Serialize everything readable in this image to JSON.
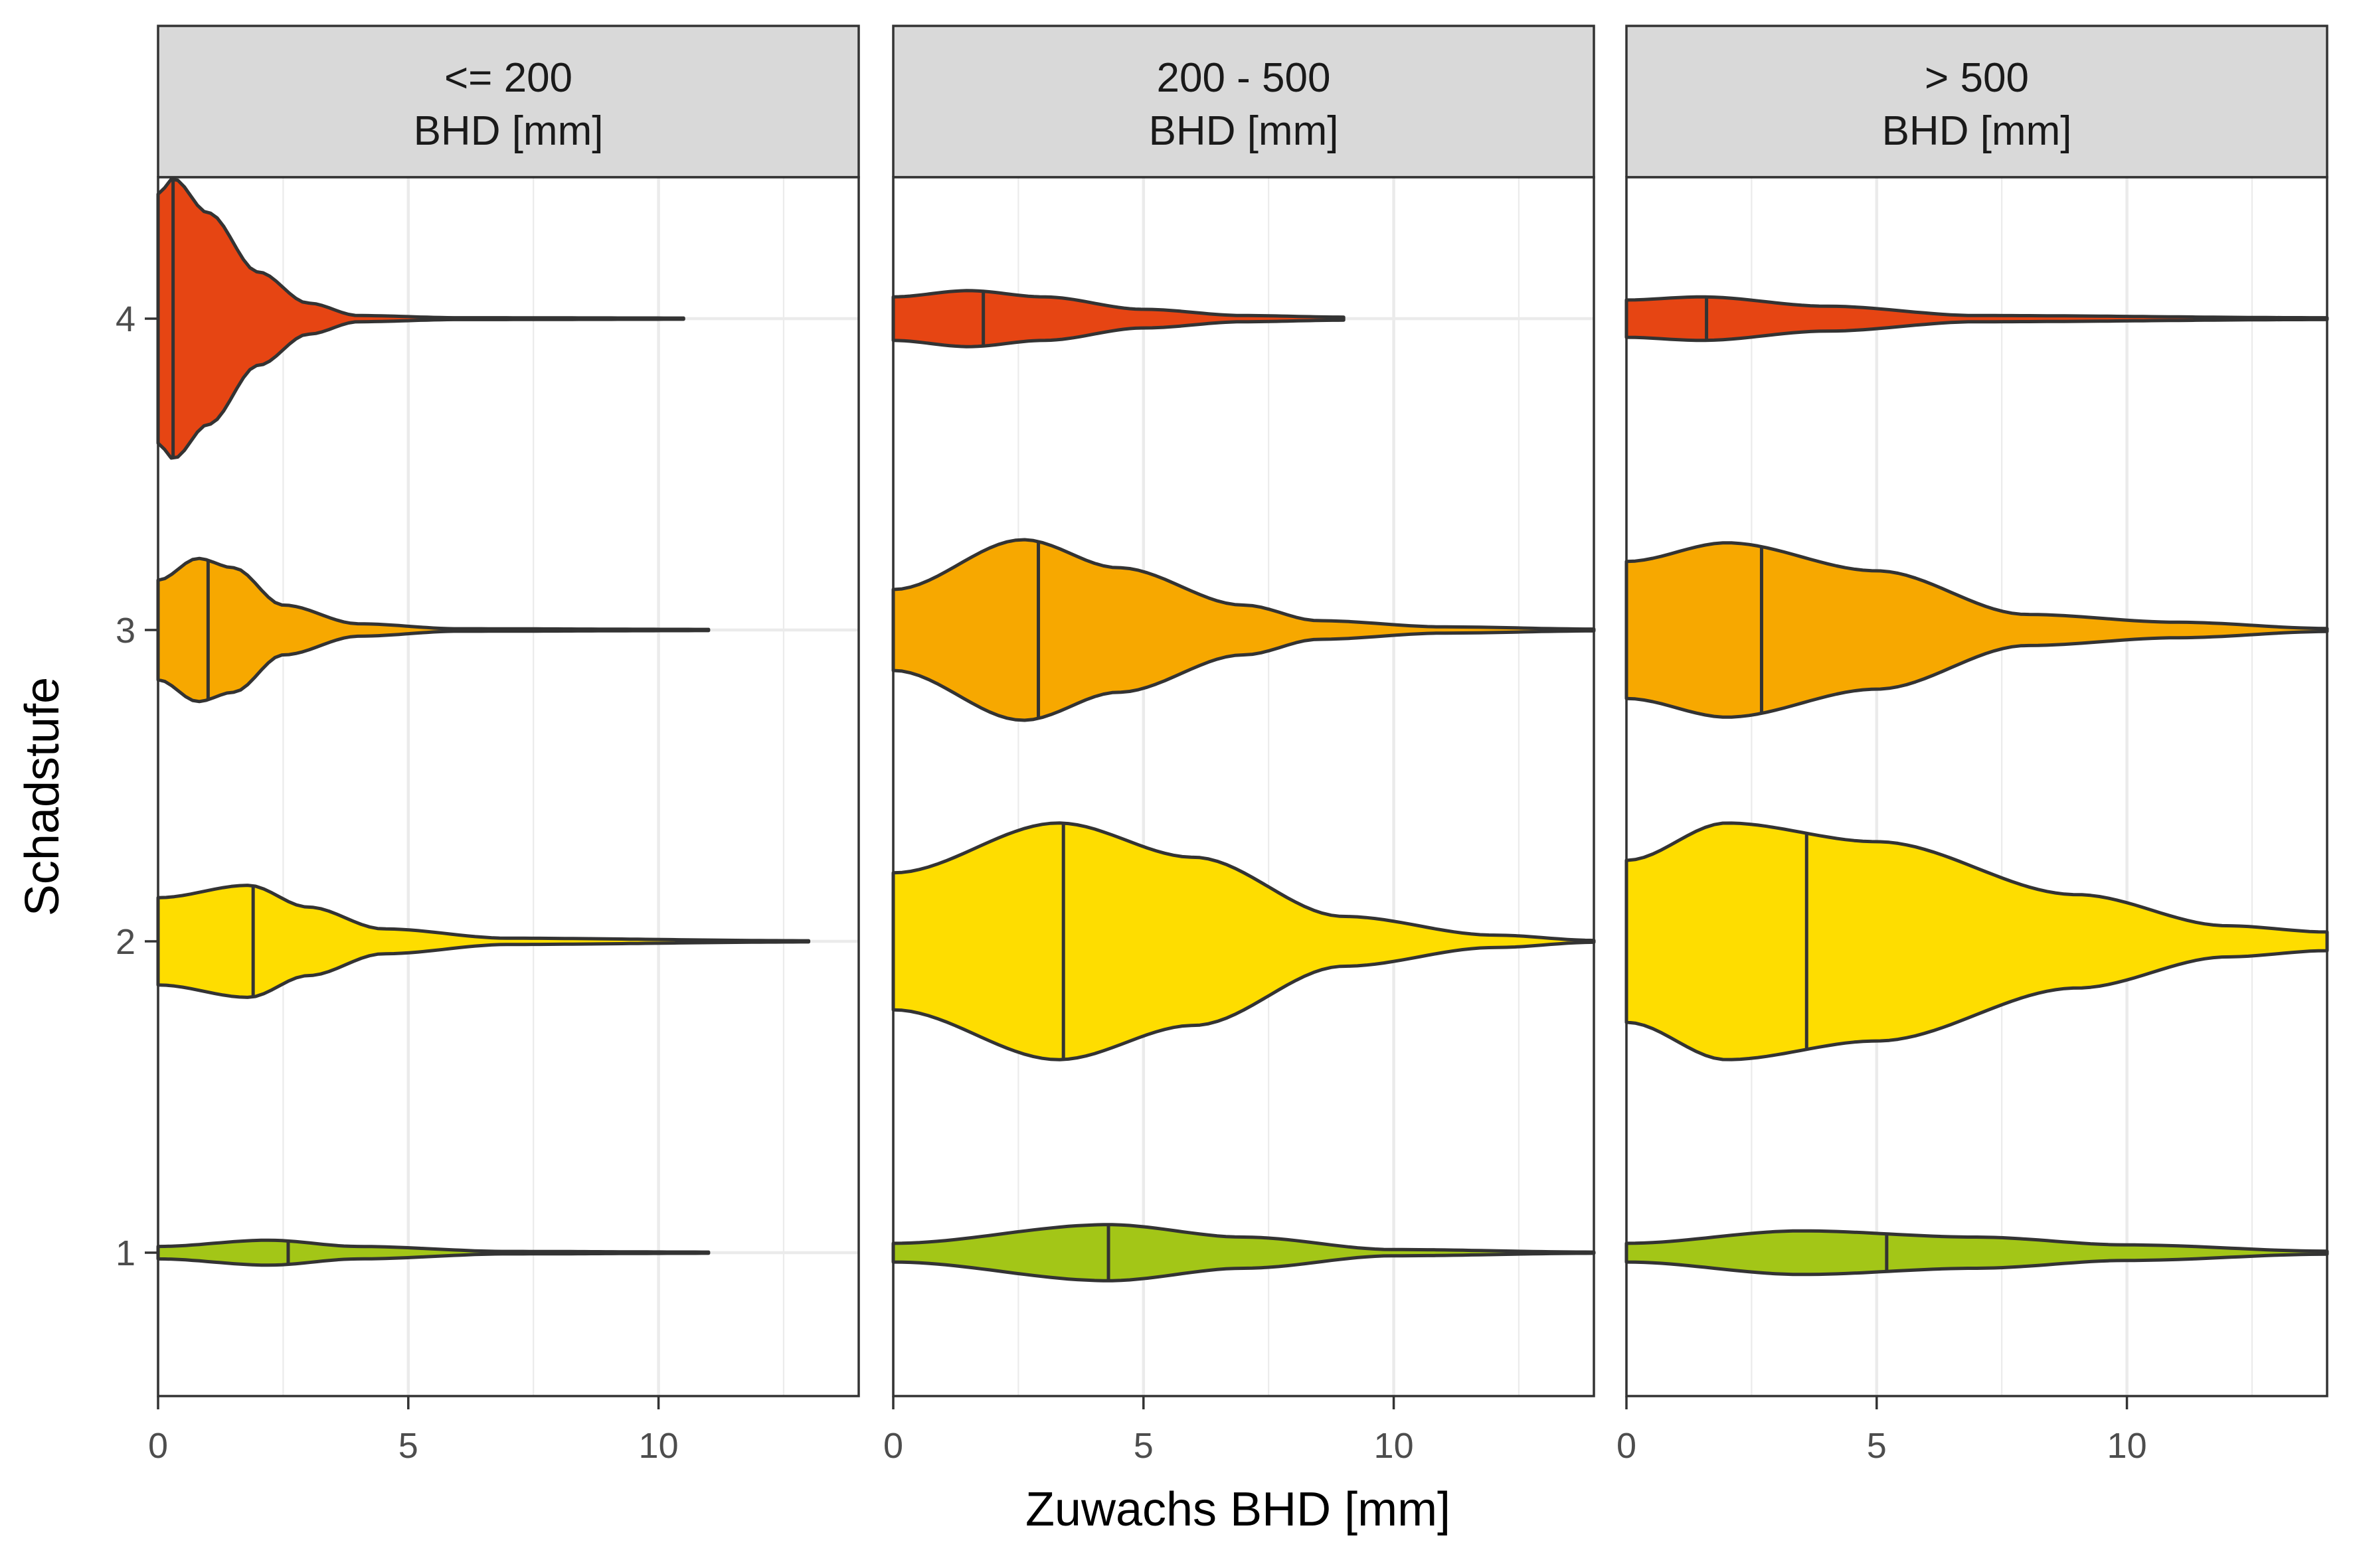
{
  "chart_data": {
    "type": "violin",
    "orientation": "horizontal",
    "xlabel": "Zuwachs BHD [mm]",
    "ylabel": "Schadstufe",
    "xlim": [
      0,
      14
    ],
    "x_ticks": [
      0,
      5,
      10
    ],
    "ylim": [
      0.55,
      4.45
    ],
    "y_categories": [
      "1",
      "2",
      "3",
      "4"
    ],
    "grid": true,
    "legend": "none",
    "colors": {
      "1": "#a3c617",
      "2": "#fedd00",
      "3": "#f7a800",
      "4": "#e64513"
    },
    "facets": [
      {
        "label": "<= 200\nBHD [mm]",
        "label_lines": [
          "<= 200",
          "BHD [mm]"
        ],
        "violins": [
          {
            "category": "4",
            "median": 0.3,
            "min": 0.0,
            "max": 10.5,
            "profile": [
              [
                0,
                0.4
              ],
              [
                0.3,
                0.45
              ],
              [
                1.0,
                0.34
              ],
              [
                2.0,
                0.15
              ],
              [
                3.0,
                0.05
              ],
              [
                4.0,
                0.01
              ],
              [
                6.0,
                0.003
              ],
              [
                10.5,
                0.002
              ]
            ]
          },
          {
            "category": "3",
            "median": 1.0,
            "min": 0.0,
            "max": 11.0,
            "profile": [
              [
                0,
                0.16
              ],
              [
                0.8,
                0.23
              ],
              [
                1.5,
                0.2
              ],
              [
                2.5,
                0.08
              ],
              [
                4.0,
                0.02
              ],
              [
                6.0,
                0.004
              ],
              [
                11.0,
                0.002
              ]
            ]
          },
          {
            "category": "2",
            "median": 1.9,
            "min": 0.0,
            "max": 13.0,
            "profile": [
              [
                0,
                0.14
              ],
              [
                1.8,
                0.18
              ],
              [
                3.0,
                0.11
              ],
              [
                4.5,
                0.04
              ],
              [
                7.0,
                0.01
              ],
              [
                13.0,
                0.002
              ]
            ]
          },
          {
            "category": "1",
            "median": 2.6,
            "min": 0.0,
            "max": 11.0,
            "profile": [
              [
                0,
                0.02
              ],
              [
                2.2,
                0.04
              ],
              [
                4.0,
                0.02
              ],
              [
                7.0,
                0.004
              ],
              [
                11.0,
                0.002
              ]
            ]
          }
        ]
      },
      {
        "label": "200 - 500\nBHD [mm]",
        "label_lines": [
          "200 - 500",
          "BHD [mm]"
        ],
        "violins": [
          {
            "category": "4",
            "median": 1.8,
            "min": 0.0,
            "max": 9.0,
            "profile": [
              [
                0,
                0.07
              ],
              [
                1.5,
                0.09
              ],
              [
                3.0,
                0.07
              ],
              [
                5.0,
                0.03
              ],
              [
                7.0,
                0.01
              ],
              [
                9.0,
                0.005
              ]
            ]
          },
          {
            "category": "3",
            "median": 2.9,
            "min": 0.0,
            "max": 14.0,
            "profile": [
              [
                0,
                0.13
              ],
              [
                2.6,
                0.29
              ],
              [
                4.5,
                0.2
              ],
              [
                7.0,
                0.08
              ],
              [
                8.5,
                0.03
              ],
              [
                11.0,
                0.01
              ],
              [
                14.0,
                0.003
              ]
            ]
          },
          {
            "category": "2",
            "median": 3.4,
            "min": 0.0,
            "max": 14.0,
            "profile": [
              [
                0,
                0.22
              ],
              [
                3.3,
                0.38
              ],
              [
                6.0,
                0.27
              ],
              [
                9.0,
                0.08
              ],
              [
                12.0,
                0.02
              ],
              [
                14.0,
                0.003
              ]
            ]
          },
          {
            "category": "1",
            "median": 4.3,
            "min": 0.0,
            "max": 14.0,
            "profile": [
              [
                0,
                0.03
              ],
              [
                4.3,
                0.09
              ],
              [
                7.0,
                0.05
              ],
              [
                10.0,
                0.01
              ],
              [
                14.0,
                0.002
              ]
            ]
          }
        ]
      },
      {
        "label": "> 500\nBHD [mm]",
        "label_lines": [
          "> 500",
          "BHD [mm]"
        ],
        "violins": [
          {
            "category": "4",
            "median": 1.6,
            "min": 0.0,
            "max": 14.0,
            "profile": [
              [
                0,
                0.06
              ],
              [
                1.5,
                0.07
              ],
              [
                4.0,
                0.04
              ],
              [
                7.0,
                0.01
              ],
              [
                14.0,
                0.003
              ]
            ]
          },
          {
            "category": "3",
            "median": 2.7,
            "min": 0.0,
            "max": 14.0,
            "profile": [
              [
                0,
                0.22
              ],
              [
                2.0,
                0.28
              ],
              [
                5.0,
                0.19
              ],
              [
                8.0,
                0.05
              ],
              [
                11.0,
                0.025
              ],
              [
                14.0,
                0.005
              ]
            ]
          },
          {
            "category": "2",
            "median": 3.6,
            "min": 0.0,
            "max": 14.0,
            "profile": [
              [
                0,
                0.26
              ],
              [
                2.0,
                0.38
              ],
              [
                5.0,
                0.32
              ],
              [
                9.0,
                0.15
              ],
              [
                12.0,
                0.05
              ],
              [
                14.0,
                0.03
              ]
            ]
          },
          {
            "category": "1",
            "median": 5.2,
            "min": 0.0,
            "max": 14.0,
            "profile": [
              [
                0,
                0.03
              ],
              [
                3.5,
                0.07
              ],
              [
                7.0,
                0.05
              ],
              [
                10.0,
                0.025
              ],
              [
                14.0,
                0.005
              ]
            ]
          }
        ]
      }
    ]
  }
}
